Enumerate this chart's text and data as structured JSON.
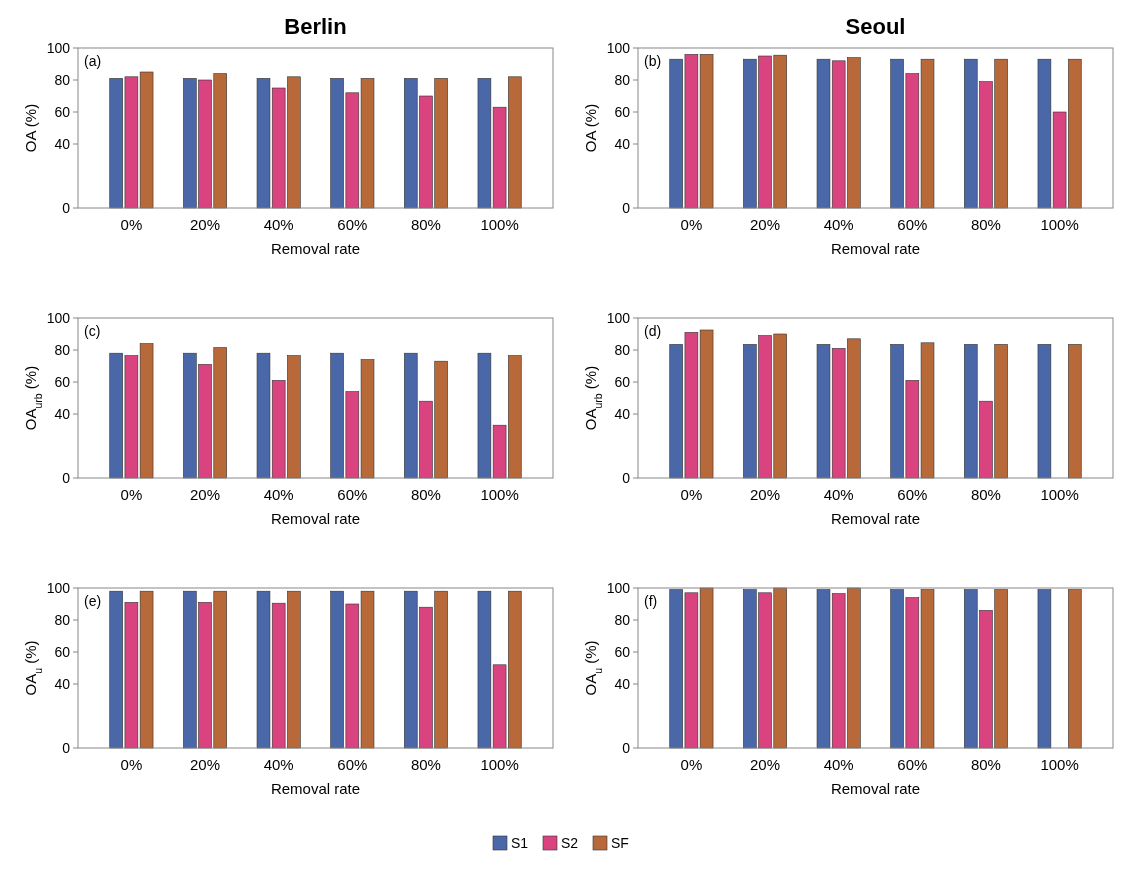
{
  "chart_data": [
    {
      "type": "bar",
      "title": "Berlin",
      "ylabel": "OA (%)",
      "xlabel": "Removal rate",
      "annotations": [
        "(a)"
      ],
      "categories": [
        "0%",
        "20%",
        "40%",
        "60%",
        "80%",
        "100%"
      ],
      "ylim": [
        0,
        100
      ],
      "yticks": [
        0,
        40,
        60,
        80,
        100
      ],
      "series": [
        {
          "color": "#4a68a8",
          "values": [
            81,
            81,
            81,
            81,
            81,
            81
          ]
        },
        {
          "color": "#d9437f",
          "values": [
            82,
            80,
            75,
            72,
            70,
            63
          ]
        },
        {
          "color": "#b8693a",
          "values": [
            85,
            84,
            82,
            81,
            81,
            82
          ]
        }
      ]
    },
    {
      "type": "bar",
      "title": "Seoul",
      "ylabel": "OA (%)",
      "xlabel": "Removal rate",
      "annotations": [
        "(b)"
      ],
      "categories": [
        "0%",
        "20%",
        "40%",
        "60%",
        "80%",
        "100%"
      ],
      "ylim": [
        0,
        100
      ],
      "yticks": [
        0,
        40,
        60,
        80,
        100
      ],
      "series": [
        {
          "color": "#4a68a8",
          "values": [
            93,
            93,
            93,
            93,
            93,
            93
          ]
        },
        {
          "color": "#d9437f",
          "values": [
            96,
            95,
            92,
            84,
            79,
            60
          ]
        },
        {
          "color": "#b8693a",
          "values": [
            96,
            95.5,
            94,
            93,
            93,
            93
          ]
        }
      ]
    },
    {
      "type": "bar",
      "ylabel": "OA$_{urb}$ (%)",
      "xlabel": "Removal rate",
      "annotations": [
        "(c)"
      ],
      "categories": [
        "0%",
        "20%",
        "40%",
        "60%",
        "80%",
        "100%"
      ],
      "ylim": [
        0,
        100
      ],
      "yticks": [
        0,
        40,
        60,
        80,
        100
      ],
      "series": [
        {
          "color": "#4a68a8",
          "values": [
            78,
            78,
            78,
            78,
            78,
            78
          ]
        },
        {
          "color": "#d9437f",
          "values": [
            76.5,
            71,
            61,
            54,
            48,
            33
          ]
        },
        {
          "color": "#b8693a",
          "values": [
            84,
            81.5,
            76.5,
            74,
            73,
            76.5
          ]
        }
      ]
    },
    {
      "type": "bar",
      "ylabel": "OA$_{urb}$ (%)",
      "xlabel": "Removal rate",
      "annotations": [
        "(d)"
      ],
      "categories": [
        "0%",
        "20%",
        "40%",
        "60%",
        "80%",
        "100%"
      ],
      "ylim": [
        0,
        100
      ],
      "yticks": [
        0,
        40,
        60,
        80,
        100
      ],
      "series": [
        {
          "color": "#4a68a8",
          "values": [
            83.5,
            83.5,
            83.5,
            83.5,
            83.5,
            83.5
          ]
        },
        {
          "color": "#d9437f",
          "values": [
            91,
            89,
            81,
            61,
            48,
            null
          ]
        },
        {
          "color": "#b8693a",
          "values": [
            92.5,
            90,
            87,
            84.5,
            83.5,
            83.5
          ]
        }
      ]
    },
    {
      "type": "bar",
      "ylabel": "OA$_{u}$ (%)",
      "xlabel": "Removal rate",
      "annotations": [
        "(e)"
      ],
      "categories": [
        "0%",
        "20%",
        "40%",
        "60%",
        "80%",
        "100%"
      ],
      "ylim": [
        0,
        100
      ],
      "yticks": [
        0,
        40,
        60,
        80,
        100
      ],
      "series": [
        {
          "color": "#4a68a8",
          "values": [
            98,
            98,
            98,
            98,
            98,
            98
          ]
        },
        {
          "color": "#d9437f",
          "values": [
            91,
            91,
            90.5,
            90,
            88,
            52
          ]
        },
        {
          "color": "#b8693a",
          "values": [
            98,
            98,
            98,
            98,
            98,
            98
          ]
        }
      ]
    },
    {
      "type": "bar",
      "ylabel": "OA$_{u}$ (%)",
      "xlabel": "Removal rate",
      "annotations": [
        "(f)"
      ],
      "categories": [
        "0%",
        "20%",
        "40%",
        "60%",
        "80%",
        "100%"
      ],
      "ylim": [
        0,
        100
      ],
      "yticks": [
        0,
        40,
        60,
        80,
        100
      ],
      "legend": "bottom",
      "series": [
        {
          "name": "S1",
          "color": "#4a68a8",
          "values": [
            99,
            99,
            99,
            99,
            99,
            99
          ]
        },
        {
          "name": "S2",
          "color": "#d9437f",
          "values": [
            97,
            97,
            96.5,
            94,
            86,
            null
          ]
        },
        {
          "name": "SF",
          "color": "#b8693a",
          "values": [
            100,
            100,
            100,
            99,
            99,
            99
          ]
        }
      ]
    }
  ]
}
